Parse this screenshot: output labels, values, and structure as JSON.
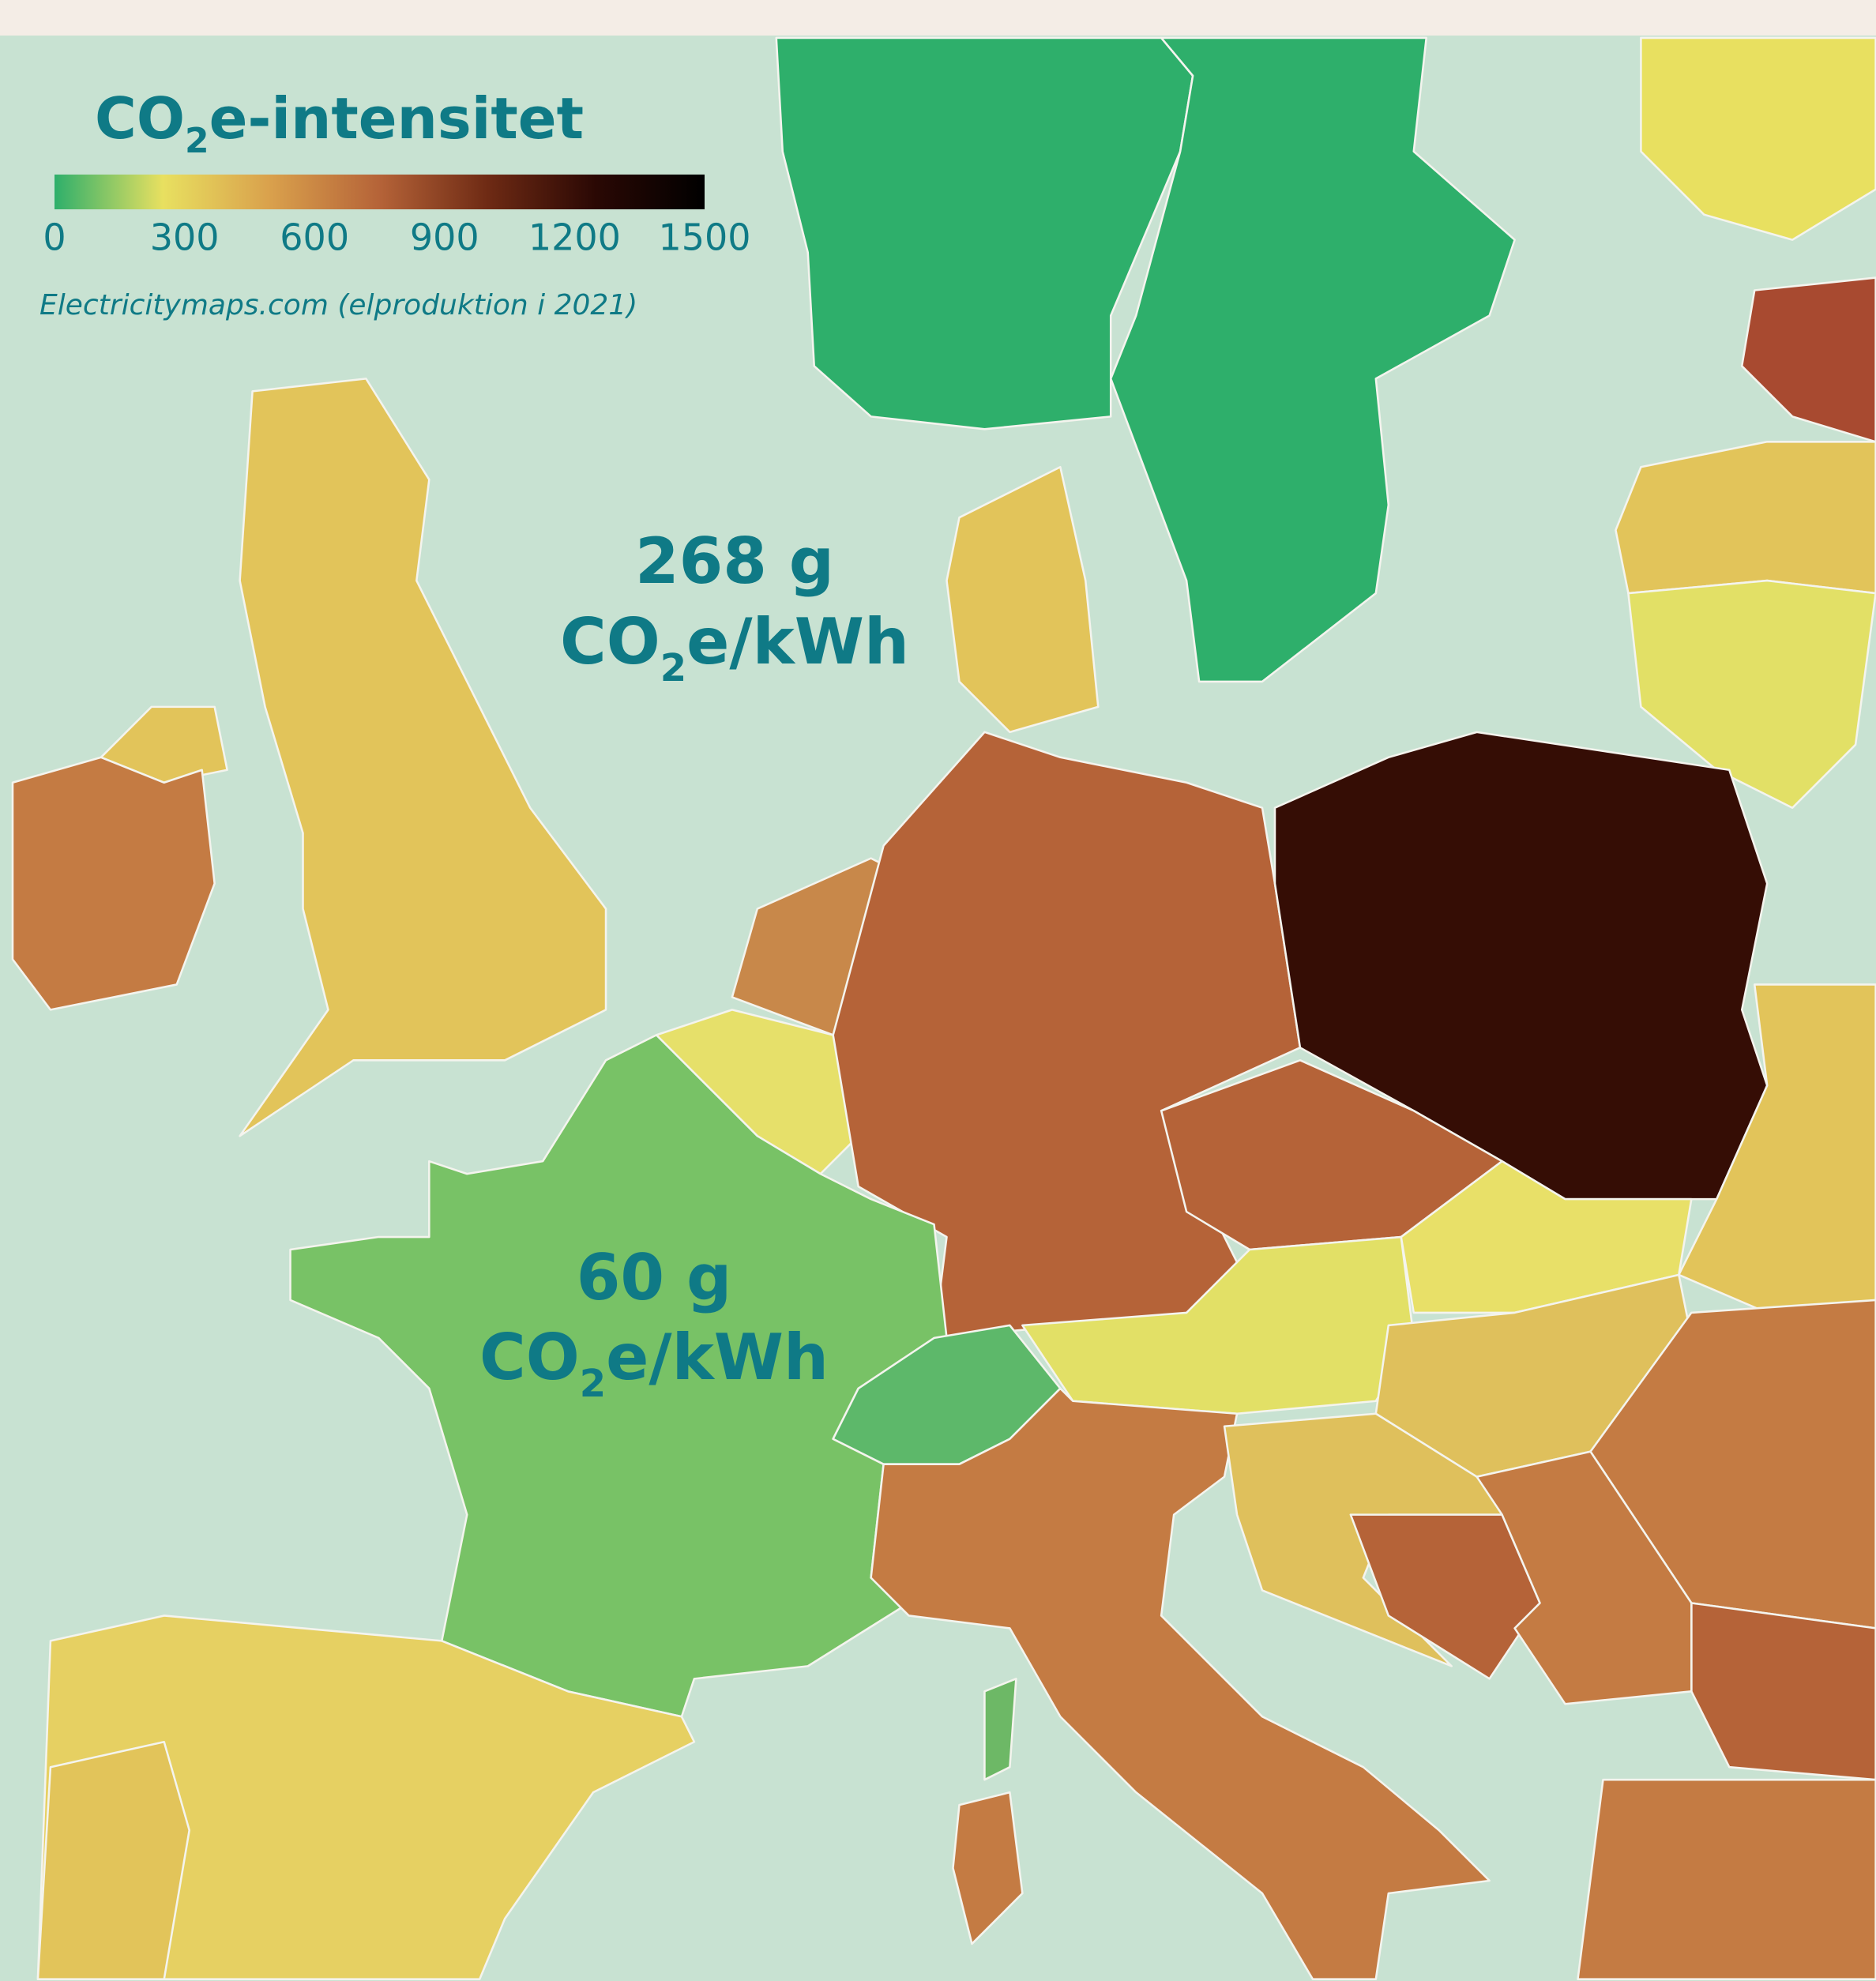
{
  "title": {
    "text": "CO",
    "subscript": "2",
    "text_after": "e-intensitet"
  },
  "legend": {
    "range": [
      0,
      1500
    ],
    "ticks": [
      0,
      300,
      600,
      900,
      1200,
      1500
    ],
    "colors": [
      "#2eaf6b",
      "#e8e060",
      "#d9a04c",
      "#b56338",
      "#6e2a14",
      "#2a0804",
      "#000000"
    ]
  },
  "source": "Electricitymaps.com (elproduktion i 2021)",
  "annotations": [
    {
      "value": "268 g",
      "unit": {
        "text": "CO",
        "subscript": "2",
        "text_after": "e/kWh"
      }
    },
    {
      "value": "60 g",
      "unit": {
        "text": "CO",
        "subscript": "2",
        "text_after": "e/kWh"
      }
    }
  ]
}
